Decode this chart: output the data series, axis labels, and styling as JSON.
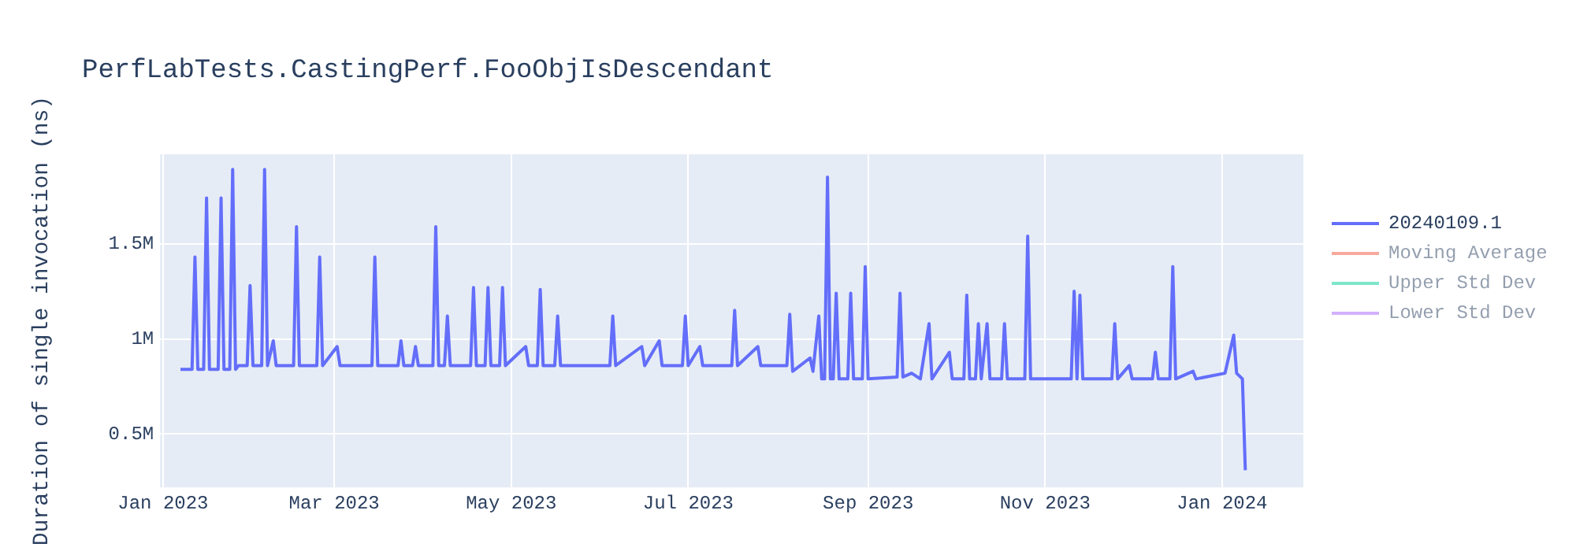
{
  "chart_data": {
    "type": "line",
    "title": "PerfLabTests.CastingPerf.FooObjIsDescendant",
    "ylabel": "Duration of single invocation (ns)",
    "xlim": [
      "2022-12-31",
      "2024-01-29"
    ],
    "xticks": [
      {
        "value": "2023-01-01",
        "label": "Jan 2023"
      },
      {
        "value": "2023-03-01",
        "label": "Mar 2023"
      },
      {
        "value": "2023-05-01",
        "label": "May 2023"
      },
      {
        "value": "2023-07-01",
        "label": "Jul 2023"
      },
      {
        "value": "2023-09-01",
        "label": "Sep 2023"
      },
      {
        "value": "2023-11-01",
        "label": "Nov 2023"
      },
      {
        "value": "2024-01-01",
        "label": "Jan 2024"
      }
    ],
    "ylim": [
      220000,
      1970000
    ],
    "yticks": [
      {
        "value": 500000,
        "label": "0.5M"
      },
      {
        "value": 1000000,
        "label": "1M"
      },
      {
        "value": 1500000,
        "label": "1.5M"
      }
    ],
    "grid": true,
    "legend": "right",
    "x": [
      "2023-01-07",
      "2023-01-11",
      "2023-01-12",
      "2023-01-13",
      "2023-01-15",
      "2023-01-16",
      "2023-01-17",
      "2023-01-20",
      "2023-01-21",
      "2023-01-22",
      "2023-01-24",
      "2023-01-25",
      "2023-01-26",
      "2023-01-27",
      "2023-01-30",
      "2023-01-31",
      "2023-02-01",
      "2023-02-04",
      "2023-02-05",
      "2023-02-06",
      "2023-02-08",
      "2023-02-09",
      "2023-02-15",
      "2023-02-16",
      "2023-02-17",
      "2023-02-23",
      "2023-02-24",
      "2023-02-25",
      "2023-03-02",
      "2023-03-03",
      "2023-03-14",
      "2023-03-15",
      "2023-03-16",
      "2023-03-23",
      "2023-03-24",
      "2023-03-25",
      "2023-03-28",
      "2023-03-29",
      "2023-03-30",
      "2023-04-04",
      "2023-04-05",
      "2023-04-06",
      "2023-04-08",
      "2023-04-09",
      "2023-04-10",
      "2023-04-17",
      "2023-04-18",
      "2023-04-19",
      "2023-04-22",
      "2023-04-23",
      "2023-04-24",
      "2023-04-27",
      "2023-04-28",
      "2023-04-29",
      "2023-05-06",
      "2023-05-07",
      "2023-05-10",
      "2023-05-11",
      "2023-05-12",
      "2023-05-16",
      "2023-05-17",
      "2023-05-18",
      "2023-06-04",
      "2023-06-05",
      "2023-06-06",
      "2023-06-15",
      "2023-06-16",
      "2023-06-21",
      "2023-06-22",
      "2023-06-29",
      "2023-06-30",
      "2023-07-01",
      "2023-07-05",
      "2023-07-06",
      "2023-07-16",
      "2023-07-17",
      "2023-07-18",
      "2023-07-25",
      "2023-07-26",
      "2023-08-04",
      "2023-08-05",
      "2023-08-06",
      "2023-08-12",
      "2023-08-13",
      "2023-08-15",
      "2023-08-16",
      "2023-08-17",
      "2023-08-18",
      "2023-08-19",
      "2023-08-20",
      "2023-08-21",
      "2023-08-22",
      "2023-08-25",
      "2023-08-26",
      "2023-08-27",
      "2023-08-30",
      "2023-08-31",
      "2023-09-01",
      "2023-09-11",
      "2023-09-12",
      "2023-09-13",
      "2023-09-16",
      "2023-09-19",
      "2023-09-22",
      "2023-09-23",
      "2023-09-29",
      "2023-09-30",
      "2023-10-04",
      "2023-10-05",
      "2023-10-06",
      "2023-10-08",
      "2023-10-09",
      "2023-10-10",
      "2023-10-12",
      "2023-10-13",
      "2023-10-17",
      "2023-10-18",
      "2023-10-19",
      "2023-10-25",
      "2023-10-26",
      "2023-10-27",
      "2023-11-10",
      "2023-11-11",
      "2023-11-12",
      "2023-11-13",
      "2023-11-14",
      "2023-11-24",
      "2023-11-25",
      "2023-11-26",
      "2023-11-30",
      "2023-12-01",
      "2023-12-08",
      "2023-12-09",
      "2023-12-10",
      "2023-12-14",
      "2023-12-15",
      "2023-12-16",
      "2023-12-22",
      "2023-12-23",
      "2024-01-02",
      "2024-01-05",
      "2024-01-06",
      "2024-01-08",
      "2024-01-09"
    ],
    "series": [
      {
        "name": "20240109.1",
        "color": "#636efa",
        "values": [
          840000,
          840000,
          1430000,
          840000,
          840000,
          1740000,
          840000,
          840000,
          1740000,
          840000,
          840000,
          1890000,
          840000,
          860000,
          860000,
          1280000,
          860000,
          860000,
          1890000,
          860000,
          990000,
          860000,
          860000,
          1590000,
          860000,
          860000,
          1430000,
          860000,
          960000,
          860000,
          860000,
          1430000,
          860000,
          860000,
          990000,
          860000,
          860000,
          960000,
          860000,
          860000,
          1590000,
          860000,
          860000,
          1120000,
          860000,
          860000,
          1270000,
          860000,
          860000,
          1270000,
          860000,
          860000,
          1270000,
          860000,
          960000,
          860000,
          860000,
          1260000,
          860000,
          860000,
          1120000,
          860000,
          860000,
          1120000,
          860000,
          960000,
          860000,
          990000,
          860000,
          860000,
          1120000,
          860000,
          960000,
          860000,
          860000,
          1150000,
          860000,
          960000,
          860000,
          860000,
          1130000,
          830000,
          900000,
          830000,
          1120000,
          790000,
          790000,
          1850000,
          790000,
          790000,
          1240000,
          790000,
          790000,
          1240000,
          790000,
          790000,
          1380000,
          790000,
          800000,
          1240000,
          800000,
          820000,
          790000,
          1080000,
          790000,
          930000,
          790000,
          790000,
          1230000,
          790000,
          790000,
          1080000,
          790000,
          1080000,
          790000,
          790000,
          1080000,
          790000,
          790000,
          1540000,
          790000,
          790000,
          1250000,
          790000,
          1230000,
          790000,
          790000,
          1080000,
          790000,
          860000,
          790000,
          790000,
          930000,
          790000,
          790000,
          1380000,
          790000,
          830000,
          790000,
          820000,
          1020000,
          820000,
          790000,
          310000
        ]
      },
      {
        "name": "Moving Average",
        "color": "#ef553b",
        "values": [
          null,
          null,
          null,
          null,
          null,
          null,
          null,
          null,
          null,
          null,
          null,
          null,
          null,
          null,
          null,
          null,
          null,
          null,
          null,
          null,
          null,
          null,
          null,
          null,
          null,
          null,
          null,
          null,
          null,
          null,
          null,
          null,
          null,
          null,
          null,
          null,
          null,
          null,
          null,
          null,
          null,
          null,
          null,
          null,
          null,
          null,
          null,
          null,
          null,
          null,
          null,
          null,
          null,
          null,
          null,
          null,
          null,
          null,
          null,
          null,
          null,
          null,
          null,
          null,
          null,
          null,
          null,
          null,
          null,
          null,
          null,
          null,
          null,
          null,
          null,
          null,
          null,
          null,
          null,
          null,
          null,
          null,
          null,
          null,
          null,
          null,
          null,
          null,
          null,
          null,
          null,
          null,
          null,
          null,
          null,
          null,
          null,
          null,
          null,
          null,
          null,
          null,
          null,
          null,
          null,
          null,
          null,
          null,
          null,
          null,
          null,
          null,
          null,
          null,
          null,
          null,
          null,
          null,
          null,
          null,
          null,
          null,
          null,
          null,
          null,
          null,
          null,
          null,
          null,
          null,
          null,
          null,
          null,
          null,
          null,
          null,
          null,
          null,
          null,
          null,
          null,
          null,
          null,
          null
        ]
      },
      {
        "name": "Upper Std Dev",
        "color": "#00cc96",
        "values": [
          null,
          null,
          null,
          null,
          null,
          null,
          null,
          null,
          null,
          null,
          null,
          null,
          null,
          null,
          null,
          null,
          null,
          null,
          null,
          null,
          null,
          null,
          null,
          null,
          null,
          null,
          null,
          null,
          null,
          null,
          null,
          null,
          null,
          null,
          null,
          null,
          null,
          null,
          null,
          null,
          null,
          null,
          null,
          null,
          null,
          null,
          null,
          null,
          null,
          null,
          null,
          null,
          null,
          null,
          null,
          null,
          null,
          null,
          null,
          null,
          null,
          null,
          null,
          null,
          null,
          null,
          null,
          null,
          null,
          null,
          null,
          null,
          null,
          null,
          null,
          null,
          null,
          null,
          null,
          null,
          null,
          null,
          null,
          null,
          null,
          null,
          null,
          null,
          null,
          null,
          null,
          null,
          null,
          null,
          null,
          null,
          null,
          null,
          null,
          null,
          null,
          null,
          null,
          null,
          null,
          null,
          null,
          null,
          null,
          null,
          null,
          null,
          null,
          null,
          null,
          null,
          null,
          null,
          null,
          null,
          null,
          null,
          null,
          null,
          null,
          null,
          null,
          null,
          null,
          null,
          null,
          null,
          null,
          null,
          null,
          null,
          null,
          null,
          null,
          null,
          null,
          null,
          null,
          null
        ]
      },
      {
        "name": "Lower Std Dev",
        "color": "#ab63fa",
        "values": [
          null,
          null,
          null,
          null,
          null,
          null,
          null,
          null,
          null,
          null,
          null,
          null,
          null,
          null,
          null,
          null,
          null,
          null,
          null,
          null,
          null,
          null,
          null,
          null,
          null,
          null,
          null,
          null,
          null,
          null,
          null,
          null,
          null,
          null,
          null,
          null,
          null,
          null,
          null,
          null,
          null,
          null,
          null,
          null,
          null,
          null,
          null,
          null,
          null,
          null,
          null,
          null,
          null,
          null,
          null,
          null,
          null,
          null,
          null,
          null,
          null,
          null,
          null,
          null,
          null,
          null,
          null,
          null,
          null,
          null,
          null,
          null,
          null,
          null,
          null,
          null,
          null,
          null,
          null,
          null,
          null,
          null,
          null,
          null,
          null,
          null,
          null,
          null,
          null,
          null,
          null,
          null,
          null,
          null,
          null,
          null,
          null,
          null,
          null,
          null,
          null,
          null,
          null,
          null,
          null,
          null,
          null,
          null,
          null,
          null,
          null,
          null,
          null,
          null,
          null,
          null,
          null,
          null,
          null,
          null,
          null,
          null,
          null,
          null,
          null,
          null,
          null,
          null,
          null,
          null,
          null,
          null,
          null,
          null,
          null,
          null,
          null,
          null,
          null,
          null,
          null,
          null,
          null,
          null
        ]
      }
    ]
  }
}
